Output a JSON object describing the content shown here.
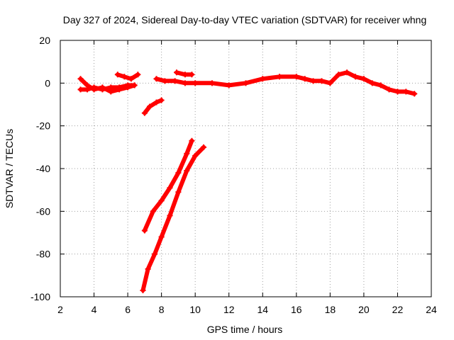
{
  "chart_data": {
    "type": "line",
    "title": "Day 327 of 2024, Sidereal Day-to-day VTEC variation (SDTVAR) for receiver whng",
    "xlabel": "GPS time / hours",
    "ylabel": "SDTVAR / TECUs",
    "xlim": [
      2,
      24
    ],
    "ylim": [
      -100,
      20
    ],
    "xticks": [
      2,
      4,
      6,
      8,
      10,
      12,
      14,
      16,
      18,
      20,
      22,
      24
    ],
    "yticks": [
      -100,
      -80,
      -60,
      -40,
      -20,
      0,
      20
    ],
    "grid": true,
    "legend": "none",
    "color": "#ff0000",
    "series": [
      {
        "name": "segment-1a",
        "x": [
          3.2,
          3.6,
          4.0,
          4.5,
          5.0,
          5.5,
          6.0,
          6.4
        ],
        "y": [
          2,
          -1,
          -3,
          -2,
          -4,
          -3,
          -2,
          -1
        ]
      },
      {
        "name": "segment-1b",
        "x": [
          3.2,
          3.6,
          4.0,
          4.5,
          5.0,
          5.5,
          6.0,
          6.4
        ],
        "y": [
          -3,
          -3,
          -2,
          -3,
          -2,
          -2,
          -1,
          -1
        ]
      },
      {
        "name": "segment-1c",
        "x": [
          5.4,
          5.8,
          6.2,
          6.6
        ],
        "y": [
          4,
          3,
          2,
          4
        ]
      },
      {
        "name": "segment-2",
        "x": [
          7.0,
          7.3,
          7.7,
          8.0
        ],
        "y": [
          -14,
          -11,
          -9,
          -8
        ]
      },
      {
        "name": "segment-3",
        "x": [
          7.7,
          8.2,
          8.8,
          9.4,
          10.0,
          11.0,
          12.0,
          13.0,
          14.0,
          15.0,
          16.0,
          16.5,
          17.0,
          17.5,
          18.0,
          18.5,
          19.0,
          19.5,
          20.0,
          20.5,
          21.0,
          21.5,
          22.0,
          22.5,
          23.0
        ],
        "y": [
          2,
          1,
          1,
          0,
          0,
          0,
          -1,
          0,
          2,
          3,
          3,
          2,
          1,
          1,
          0,
          4,
          5,
          3,
          2,
          0,
          -1,
          -3,
          -4,
          -4,
          -5
        ]
      },
      {
        "name": "segment-3b",
        "x": [
          8.9,
          9.4,
          9.8
        ],
        "y": [
          5,
          4,
          4
        ]
      },
      {
        "name": "segment-4",
        "x": [
          7.0,
          7.5,
          8.0,
          8.5,
          9.0,
          9.5,
          9.8
        ],
        "y": [
          -69,
          -60,
          -55,
          -49,
          -42,
          -33,
          -27
        ]
      },
      {
        "name": "segment-5",
        "x": [
          6.9,
          7.2,
          7.6,
          8.0,
          8.5,
          9.0,
          9.5,
          10.0,
          10.5
        ],
        "y": [
          -97,
          -87,
          -80,
          -72,
          -62,
          -51,
          -41,
          -34,
          -30
        ]
      }
    ]
  }
}
